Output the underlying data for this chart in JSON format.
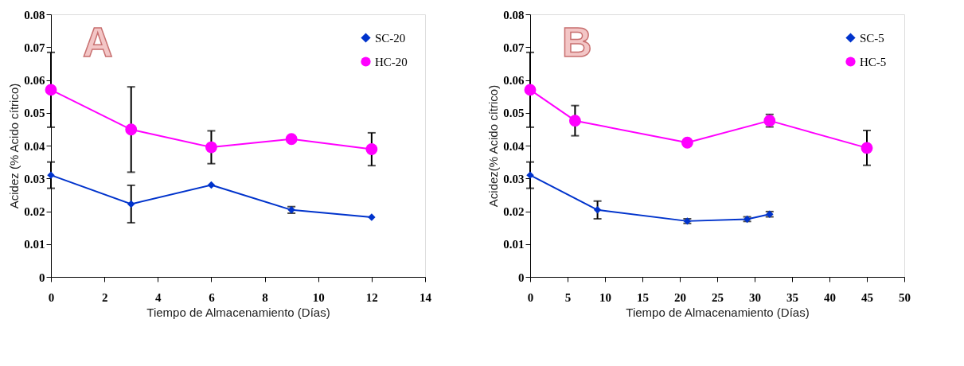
{
  "chart_data": [
    {
      "type": "line",
      "annotations": [
        "A"
      ],
      "xlabel": "Tiempo de Almacenamiento (Días)",
      "ylabel": "Acidez (% Acido cítrico)",
      "xlim": [
        0,
        14
      ],
      "xticks": [
        0,
        2,
        4,
        6,
        8,
        10,
        12,
        14
      ],
      "ylim": [
        0,
        0.08
      ],
      "yticks": [
        0,
        0.01,
        0.02,
        0.03,
        0.04,
        0.05,
        0.06,
        0.07,
        0.08
      ],
      "grid": false,
      "legend": "top right",
      "line_style": "solid",
      "series": [
        {
          "name": "SC-20",
          "color": "#0033cc",
          "marker": "diamond",
          "x": [
            0,
            3,
            6,
            9,
            12
          ],
          "values": [
            0.031,
            0.0222,
            0.028,
            0.0204,
            0.0182
          ],
          "errors": [
            0.004,
            0.0057,
            null,
            0.001,
            null
          ]
        },
        {
          "name": "HC-20",
          "color": "#ff00ff",
          "marker": "circle",
          "x": [
            0,
            3,
            6,
            9,
            12
          ],
          "values": [
            0.057,
            0.0449,
            0.0395,
            0.042,
            0.0389
          ],
          "errors": [
            0.0114,
            0.013,
            0.005,
            null,
            0.005
          ]
        }
      ]
    },
    {
      "type": "line",
      "annotations": [
        "B"
      ],
      "xlabel": "Tiempo de Almacenamiento (Días)",
      "ylabel": "Acidez(% Acido cítrico)",
      "xlim": [
        0,
        50
      ],
      "xticks": [
        0,
        5,
        10,
        15,
        20,
        25,
        30,
        35,
        40,
        45,
        50
      ],
      "ylim": [
        0,
        0.08
      ],
      "yticks": [
        0,
        0.01,
        0.02,
        0.03,
        0.04,
        0.05,
        0.06,
        0.07,
        0.08
      ],
      "grid": false,
      "legend": "top right",
      "line_style": "solid",
      "series": [
        {
          "name": "SC-5",
          "color": "#0033cc",
          "marker": "diamond",
          "x": [
            0,
            9,
            21,
            29,
            32
          ],
          "values": [
            0.031,
            0.0204,
            0.017,
            0.0176,
            0.0191
          ],
          "errors": [
            0.004,
            0.0027,
            0.0007,
            0.0007,
            0.0008
          ]
        },
        {
          "name": "HC-5",
          "color": "#ff00ff",
          "marker": "circle",
          "x": [
            0,
            6,
            21,
            32,
            45
          ],
          "values": [
            0.057,
            0.0476,
            0.0409,
            0.0476,
            0.0393
          ],
          "errors": [
            0.0114,
            0.0046,
            null,
            0.0019,
            0.0053
          ]
        }
      ]
    }
  ]
}
